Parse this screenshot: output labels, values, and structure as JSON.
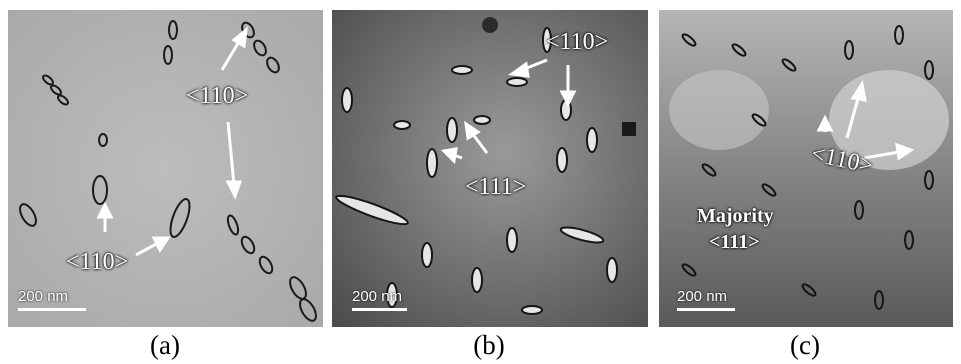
{
  "panels": [
    {
      "caption": "(a)",
      "scale_label": "200 nm",
      "labels": [
        "<110>",
        "<110>"
      ]
    },
    {
      "caption": "(b)",
      "scale_label": "200 nm",
      "labels": [
        "<110>",
        "<111>"
      ]
    },
    {
      "caption": "(c)",
      "scale_label": "200 nm",
      "labels": [
        "<110>",
        "Majority",
        "<111>"
      ]
    }
  ],
  "colors": {
    "panel_a_bg": "#b4b4b4",
    "panel_b_bg": "#7a7a7a",
    "panel_c_bg": "#8a8a8a",
    "annotation": "#ffffff",
    "defect": "#1a1a1a"
  }
}
